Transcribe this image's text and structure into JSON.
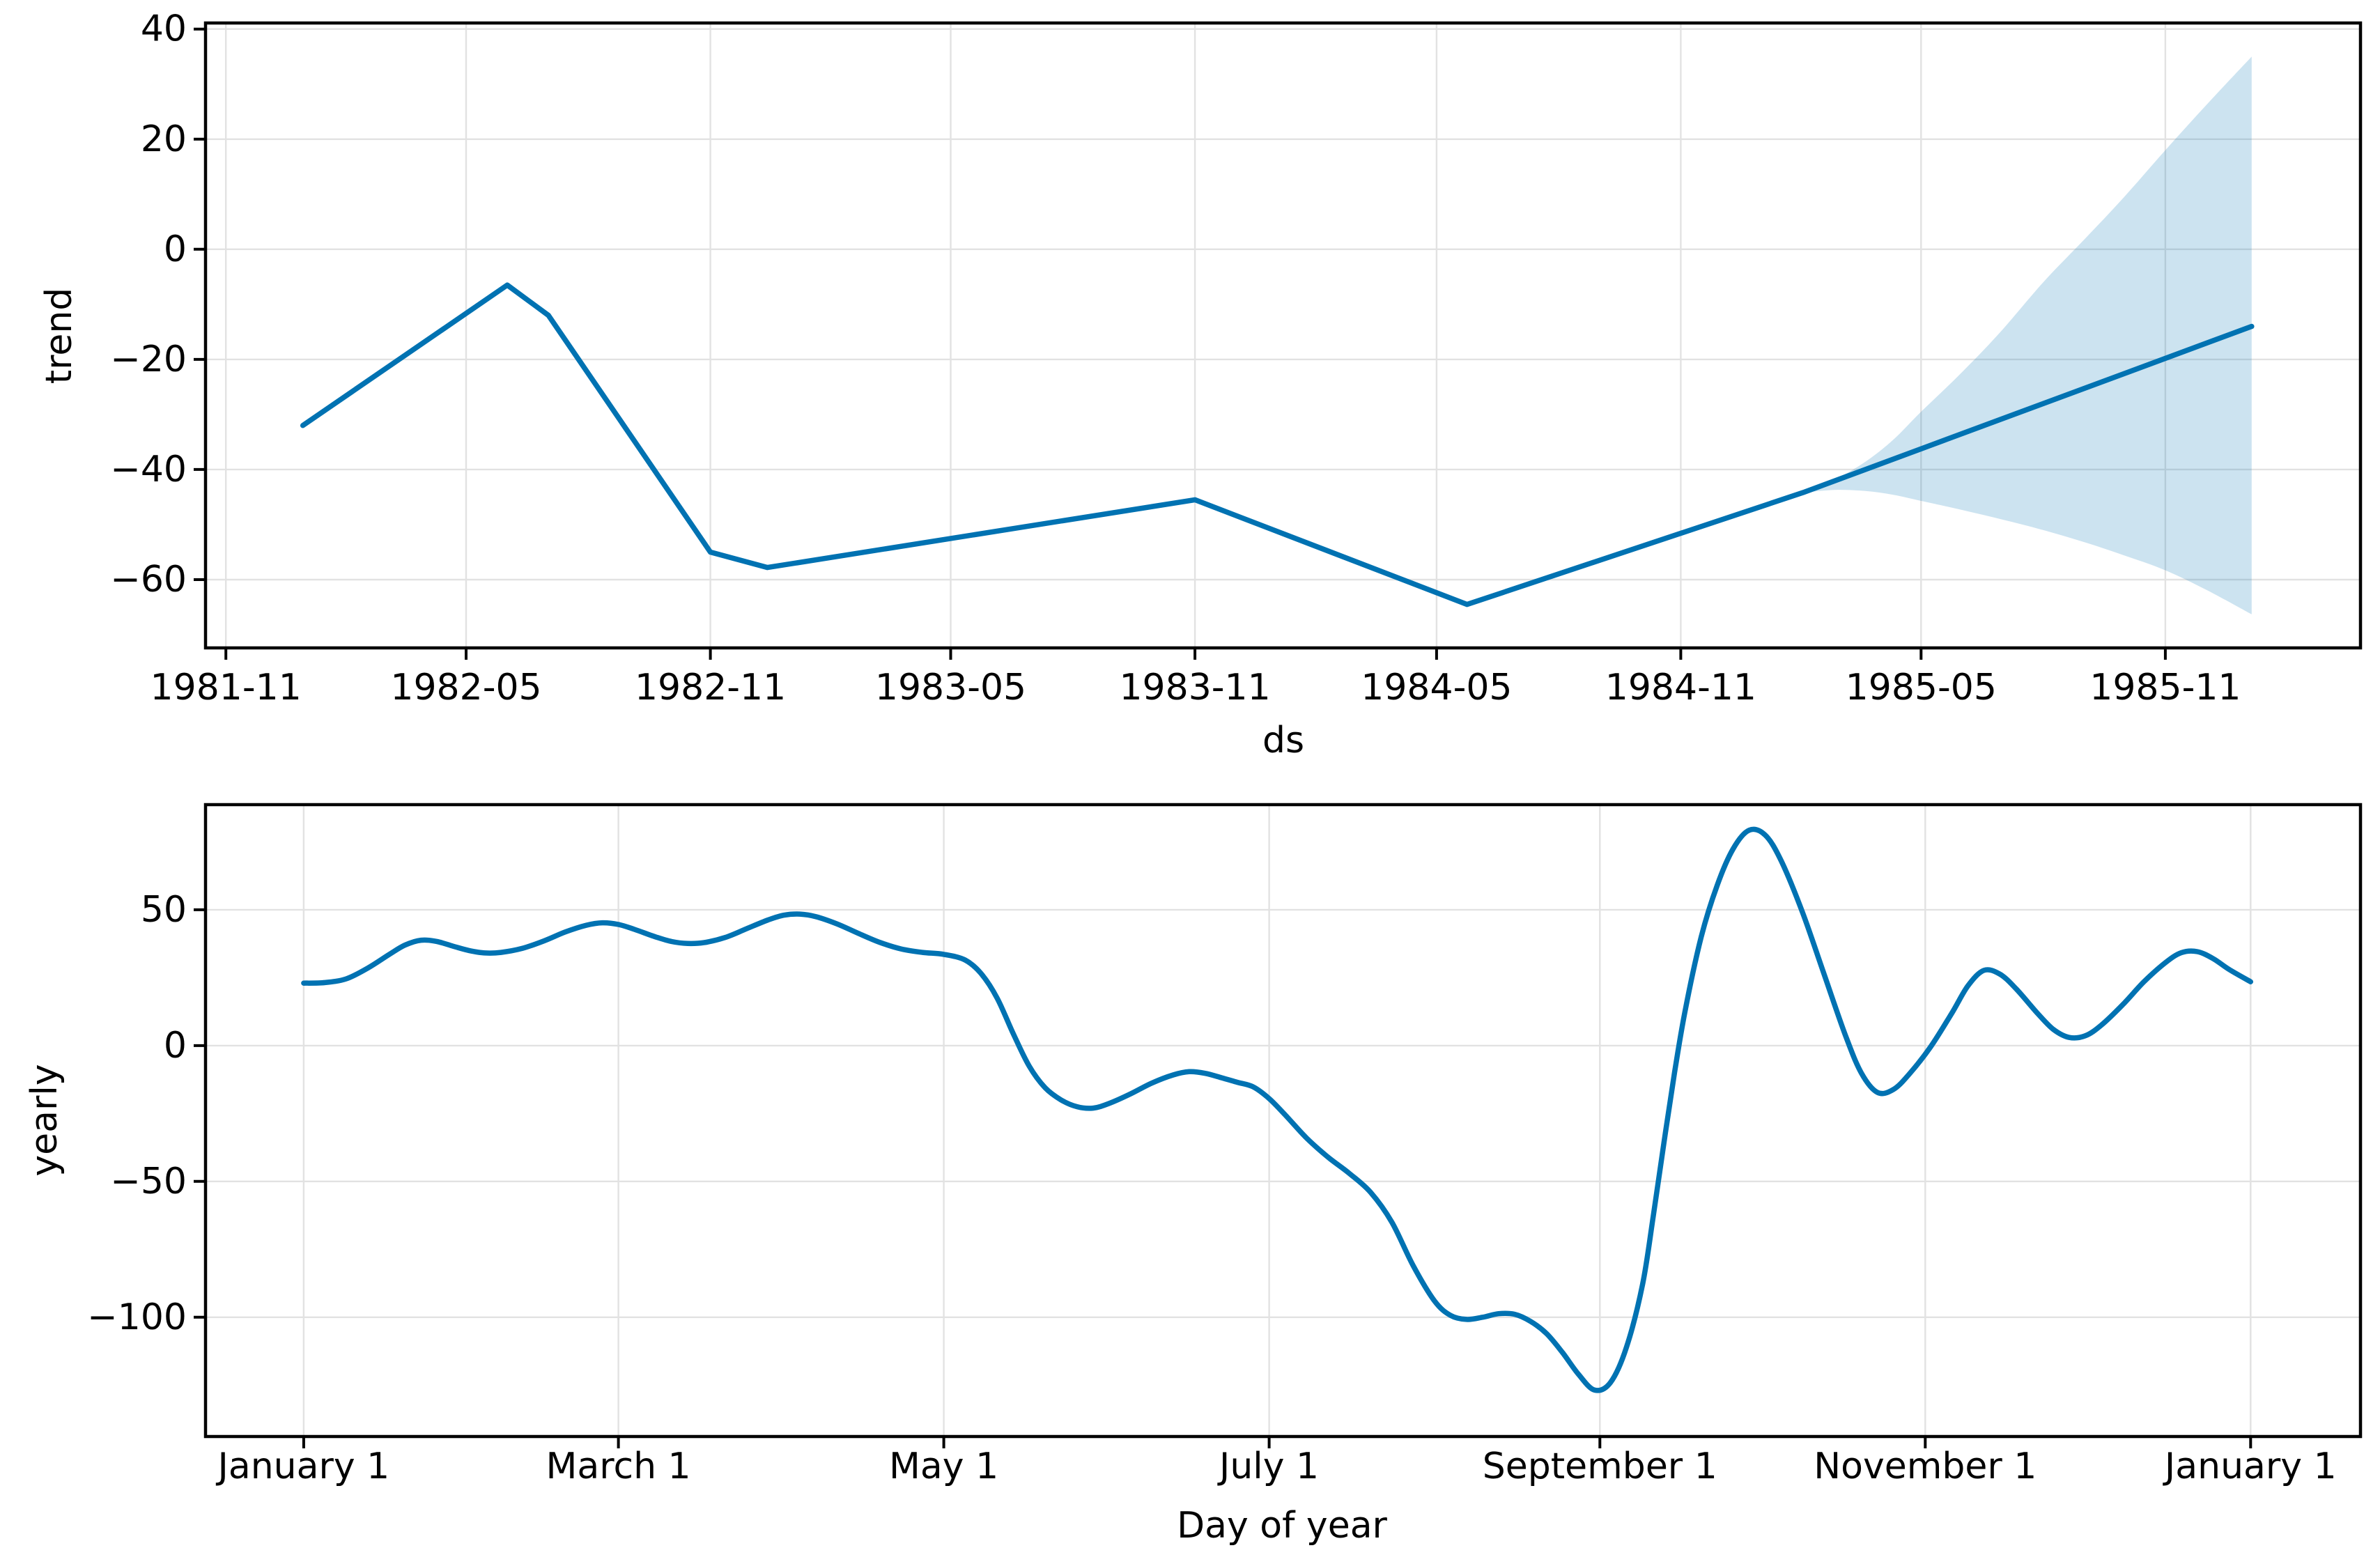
{
  "figure": {
    "type": "prophet-forecast-components",
    "background": "#ffffff",
    "line_color": "#0072b2",
    "band_color": "#0072b2",
    "band_opacity": 0.2,
    "grid_color": "#e2e2e2",
    "spine_color": "#000000",
    "text_color": "#000000"
  },
  "chart_data": [
    {
      "type": "line",
      "title": "",
      "xlabel": "ds",
      "ylabel": "trend",
      "x_unit": "days since 1981-11-01",
      "xlim": [
        -15.3,
        1608
      ],
      "ylim": [
        -72.4,
        41.1
      ],
      "grid": true,
      "legend": "none",
      "x_ticks": [
        {
          "label": "1981-11",
          "x": 0
        },
        {
          "label": "1982-05",
          "x": 181
        },
        {
          "label": "1982-11",
          "x": 365
        },
        {
          "label": "1983-05",
          "x": 546
        },
        {
          "label": "1983-11",
          "x": 730
        },
        {
          "label": "1984-05",
          "x": 912
        },
        {
          "label": "1984-11",
          "x": 1096
        },
        {
          "label": "1985-05",
          "x": 1277
        },
        {
          "label": "1985-11",
          "x": 1461
        }
      ],
      "y_ticks": [
        {
          "label": "40",
          "y": 40
        },
        {
          "label": "20",
          "y": 20
        },
        {
          "label": "0",
          "y": 0
        },
        {
          "label": "−20",
          "y": -20
        },
        {
          "label": "−40",
          "y": -40
        },
        {
          "label": "−60",
          "y": -60
        }
      ],
      "series": [
        {
          "name": "trend",
          "smooth": false,
          "points": [
            [
              58,
              -32
            ],
            [
              212,
              -6.5
            ],
            [
              243,
              -12
            ],
            [
              365,
              -55
            ],
            [
              408,
              -57.8
            ],
            [
              730,
              -45.5
            ],
            [
              935,
              -64.5
            ],
            [
              1188,
              -44.2
            ],
            [
              1526,
              -14
            ]
          ]
        }
      ],
      "uncertainty_band": {
        "name": "trend-uncertainty-interval",
        "upper": [
          [
            1188,
            -44.2
          ],
          [
            1212,
            -41.8
          ],
          [
            1235,
            -38.6
          ],
          [
            1256,
            -34.6
          ],
          [
            1277,
            -29.5
          ],
          [
            1305,
            -23
          ],
          [
            1335,
            -15.5
          ],
          [
            1369,
            -6
          ],
          [
            1400,
            1.8
          ],
          [
            1430,
            9.5
          ],
          [
            1461,
            18
          ],
          [
            1493,
            26.5
          ],
          [
            1526,
            35
          ]
        ],
        "lower": [
          [
            1188,
            -44.2
          ],
          [
            1212,
            -43.7
          ],
          [
            1235,
            -43.9
          ],
          [
            1256,
            -44.6
          ],
          [
            1277,
            -45.7
          ],
          [
            1305,
            -47.2
          ],
          [
            1335,
            -48.9
          ],
          [
            1369,
            -51
          ],
          [
            1400,
            -53.2
          ],
          [
            1430,
            -55.6
          ],
          [
            1461,
            -58.3
          ],
          [
            1493,
            -62
          ],
          [
            1526,
            -66.3
          ]
        ]
      }
    },
    {
      "type": "line",
      "title": "",
      "xlabel": "Day of year",
      "ylabel": "yearly",
      "x_unit": "day of year",
      "xlim": [
        -18.4,
        385.6
      ],
      "ylim": [
        -143.9,
        88.7
      ],
      "grid": true,
      "legend": "none",
      "x_ticks": [
        {
          "label": "January 1",
          "x": 0
        },
        {
          "label": "March 1",
          "x": 59
        },
        {
          "label": "May 1",
          "x": 120
        },
        {
          "label": "July 1",
          "x": 181
        },
        {
          "label": "September 1",
          "x": 243
        },
        {
          "label": "November 1",
          "x": 304
        },
        {
          "label": "January 1",
          "x": 365
        }
      ],
      "y_ticks": [
        {
          "label": "50",
          "y": 50
        },
        {
          "label": "0",
          "y": 0
        },
        {
          "label": "−50",
          "y": -50
        },
        {
          "label": "−100",
          "y": -100
        }
      ],
      "series": [
        {
          "name": "yearly",
          "smooth": true,
          "points": [
            [
              0,
              23
            ],
            [
              4,
              23.2
            ],
            [
              8,
              24.6
            ],
            [
              12,
              28.5
            ],
            [
              16,
              33.5
            ],
            [
              19,
              37
            ],
            [
              22,
              38.8
            ],
            [
              25,
              38.3
            ],
            [
              28,
              36.6
            ],
            [
              31,
              35
            ],
            [
              34,
              34.1
            ],
            [
              37,
              34.3
            ],
            [
              41,
              35.8
            ],
            [
              45,
              38.5
            ],
            [
              49,
              41.8
            ],
            [
              53,
              44.3
            ],
            [
              56,
              45.2
            ],
            [
              59,
              44.6
            ],
            [
              62,
              42.8
            ],
            [
              66,
              40
            ],
            [
              69,
              38.3
            ],
            [
              72,
              37.6
            ],
            [
              75,
              37.9
            ],
            [
              79,
              39.8
            ],
            [
              83,
              43
            ],
            [
              87,
              46.2
            ],
            [
              90,
              48
            ],
            [
              93,
              48.4
            ],
            [
              96,
              47.5
            ],
            [
              100,
              44.8
            ],
            [
              104,
              41.3
            ],
            [
              108,
              38
            ],
            [
              112,
              35.6
            ],
            [
              116,
              34.3
            ],
            [
              120,
              33.6
            ],
            [
              124,
              31.5
            ],
            [
              127,
              26.5
            ],
            [
              130,
              17.5
            ],
            [
              133,
              4.5
            ],
            [
              136,
              -7.5
            ],
            [
              139,
              -15.5
            ],
            [
              142,
              -20
            ],
            [
              145,
              -22.5
            ],
            [
              148,
              -23
            ],
            [
              151,
              -21.3
            ],
            [
              155,
              -17.8
            ],
            [
              159,
              -13.8
            ],
            [
              163,
              -10.8
            ],
            [
              166,
              -9.6
            ],
            [
              169,
              -10.2
            ],
            [
              172,
              -11.8
            ],
            [
              175,
              -13.5
            ],
            [
              178,
              -15.2
            ],
            [
              181,
              -19.5
            ],
            [
              184,
              -25.5
            ],
            [
              188,
              -34
            ],
            [
              192,
              -41
            ],
            [
              196,
              -47
            ],
            [
              200,
              -54
            ],
            [
              204,
              -65
            ],
            [
              208,
              -81
            ],
            [
              212,
              -94
            ],
            [
              215,
              -99.3
            ],
            [
              218,
              -100.8
            ],
            [
              221,
              -100
            ],
            [
              224,
              -98.7
            ],
            [
              227,
              -98.9
            ],
            [
              230,
              -101.5
            ],
            [
              233,
              -106
            ],
            [
              236,
              -113
            ],
            [
              239,
              -121
            ],
            [
              242,
              -126.8
            ],
            [
              245,
              -124
            ],
            [
              248,
              -111
            ],
            [
              251,
              -88
            ],
            [
              253,
              -63
            ],
            [
              255,
              -36
            ],
            [
              257,
              -10
            ],
            [
              259,
              13
            ],
            [
              262,
              40
            ],
            [
              265,
              59
            ],
            [
              268,
              72.5
            ],
            [
              271,
              79.3
            ],
            [
              274,
              77.5
            ],
            [
              277,
              68
            ],
            [
              281,
              49
            ],
            [
              285,
              26.5
            ],
            [
              289,
              4
            ],
            [
              292,
              -10
            ],
            [
              295,
              -17.2
            ],
            [
              298,
              -16.2
            ],
            [
              301,
              -10.5
            ],
            [
              305,
              -0.5
            ],
            [
              309,
              12
            ],
            [
              312,
              22
            ],
            [
              315,
              27.7
            ],
            [
              318,
              26.3
            ],
            [
              321,
              21
            ],
            [
              325,
              12
            ],
            [
              328,
              6
            ],
            [
              331,
              3
            ],
            [
              334,
              3.6
            ],
            [
              337,
              7.5
            ],
            [
              341,
              15
            ],
            [
              345,
              23.5
            ],
            [
              349,
              30.5
            ],
            [
              352,
              34.2
            ],
            [
              355,
              34.6
            ],
            [
              358,
              32
            ],
            [
              361,
              28
            ],
            [
              365,
              23.5
            ]
          ]
        }
      ]
    }
  ]
}
